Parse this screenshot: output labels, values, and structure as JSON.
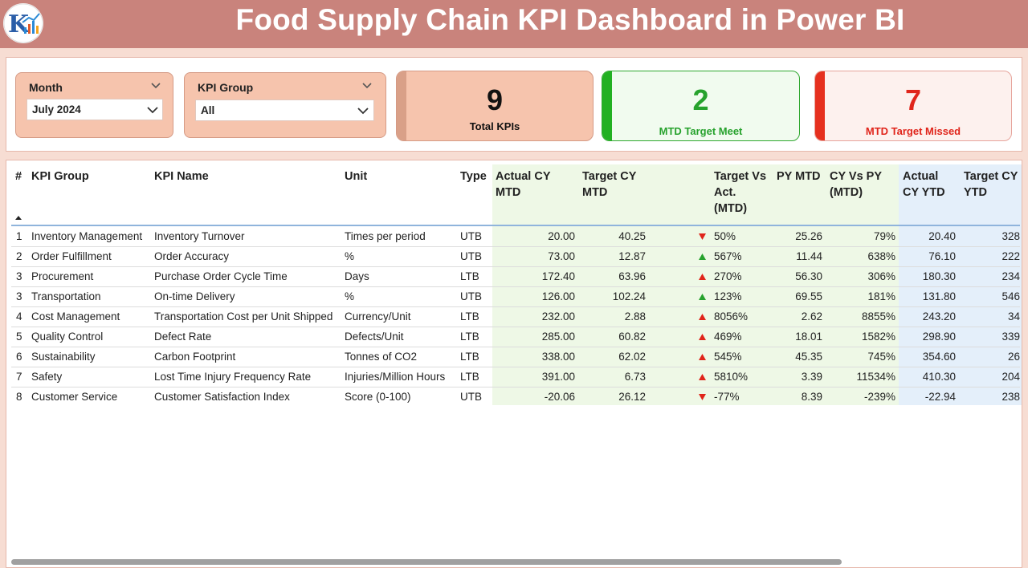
{
  "header": {
    "title": "Food Supply Chain KPI Dashboard in Power BI"
  },
  "slicers": {
    "month": {
      "label": "Month",
      "value": "July 2024"
    },
    "kpi_group": {
      "label": "KPI Group",
      "value": "All"
    }
  },
  "cards": {
    "total": {
      "value": "9",
      "label": "Total KPIs"
    },
    "meet": {
      "value": "2",
      "label": "MTD Target Meet"
    },
    "missed": {
      "value": "7",
      "label": "MTD Target Missed"
    }
  },
  "colors": {
    "header": "#c9837c",
    "green": "#27a22d",
    "red": "#e0251b",
    "card_total": "#f6c4ad"
  },
  "table": {
    "headers": {
      "num": "#",
      "group": "KPI Group",
      "name": "KPI Name",
      "unit": "Unit",
      "type": "Type",
      "actual_cy_mtd": [
        "Actual CY",
        "MTD"
      ],
      "target_cy_mtd": [
        "Target CY",
        "MTD"
      ],
      "target_vs_act": [
        "Target Vs",
        "Act.",
        "(MTD)"
      ],
      "py_mtd": "PY MTD",
      "cy_vs_py": [
        "CY Vs PY",
        "(MTD)"
      ],
      "actual_cy_ytd": [
        "Actual",
        "CY YTD"
      ],
      "target_cy_ytd": [
        "Target CY",
        "YTD"
      ]
    },
    "rows": [
      {
        "num": "1",
        "group": "Inventory Management",
        "name": "Inventory Turnover",
        "unit": "Times per period",
        "type": "UTB",
        "actual": "20.00",
        "target": "40.25",
        "dir": "down",
        "tva": "50%",
        "py": "25.26",
        "cvp": "79%",
        "aytd": "20.40",
        "tytd": "328"
      },
      {
        "num": "2",
        "group": "Order Fulfillment",
        "name": "Order Accuracy",
        "unit": "%",
        "type": "UTB",
        "actual": "73.00",
        "target": "12.87",
        "dir": "up-green",
        "tva": "567%",
        "py": "11.44",
        "cvp": "638%",
        "aytd": "76.10",
        "tytd": "222"
      },
      {
        "num": "3",
        "group": "Procurement",
        "name": "Purchase Order Cycle Time",
        "unit": "Days",
        "type": "LTB",
        "actual": "172.40",
        "target": "63.96",
        "dir": "up-red",
        "tva": "270%",
        "py": "56.30",
        "cvp": "306%",
        "aytd": "180.30",
        "tytd": "234"
      },
      {
        "num": "3",
        "group": "Transportation",
        "name": "On-time Delivery",
        "unit": "%",
        "type": "UTB",
        "actual": "126.00",
        "target": "102.24",
        "dir": "up-green",
        "tva": "123%",
        "py": "69.55",
        "cvp": "181%",
        "aytd": "131.80",
        "tytd": "546"
      },
      {
        "num": "4",
        "group": "Cost Management",
        "name": "Transportation Cost per Unit Shipped",
        "unit": "Currency/Unit",
        "type": "LTB",
        "actual": "232.00",
        "target": "2.88",
        "dir": "up-red",
        "tva": "8056%",
        "py": "2.62",
        "cvp": "8855%",
        "aytd": "243.20",
        "tytd": "34"
      },
      {
        "num": "5",
        "group": "Quality Control",
        "name": "Defect Rate",
        "unit": "Defects/Unit",
        "type": "LTB",
        "actual": "285.00",
        "target": "60.82",
        "dir": "up-red",
        "tva": "469%",
        "py": "18.01",
        "cvp": "1582%",
        "aytd": "298.90",
        "tytd": "339"
      },
      {
        "num": "6",
        "group": "Sustainability",
        "name": "Carbon Footprint",
        "unit": "Tonnes of CO2",
        "type": "LTB",
        "actual": "338.00",
        "target": "62.02",
        "dir": "up-red",
        "tva": "545%",
        "py": "45.35",
        "cvp": "745%",
        "aytd": "354.60",
        "tytd": "26"
      },
      {
        "num": "7",
        "group": "Safety",
        "name": "Lost Time Injury Frequency Rate",
        "unit": "Injuries/Million Hours",
        "type": "LTB",
        "actual": "391.00",
        "target": "6.73",
        "dir": "up-red",
        "tva": "5810%",
        "py": "3.39",
        "cvp": "11534%",
        "aytd": "410.30",
        "tytd": "204"
      },
      {
        "num": "8",
        "group": "Customer Service",
        "name": "Customer Satisfaction Index",
        "unit": "Score (0-100)",
        "type": "UTB",
        "actual": "-20.06",
        "target": "26.12",
        "dir": "down",
        "tva": "-77%",
        "py": "8.39",
        "cvp": "-239%",
        "aytd": "-22.94",
        "tytd": "238"
      }
    ]
  }
}
